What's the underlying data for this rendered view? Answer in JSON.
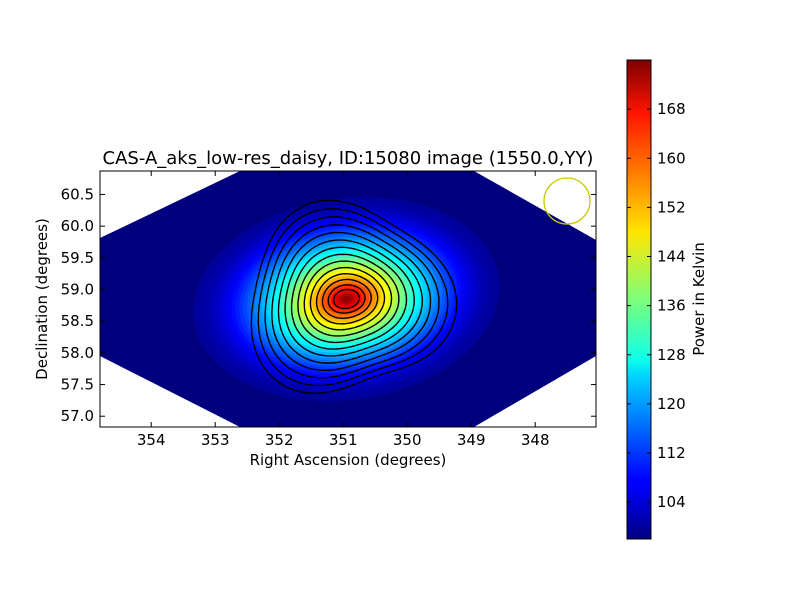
{
  "chart_data": {
    "type": "heatmap",
    "title": "CAS-A_aks_low-res_daisy, ID:15080 image (1550.0,YY)",
    "xlabel": "Right Ascension (degrees)",
    "ylabel": "Declination (degrees)",
    "xlim": [
      354.8,
      347.05
    ],
    "ylim": [
      56.83,
      60.87
    ],
    "x_inverted": true,
    "xticks": [
      354,
      353,
      352,
      351,
      350,
      349,
      348
    ],
    "yticks": [
      57.0,
      57.5,
      58.0,
      58.5,
      59.0,
      59.5,
      60.0,
      60.5
    ],
    "ytick_labels": [
      "57.0",
      "57.5",
      "58.0",
      "58.5",
      "59.0",
      "59.5",
      "60.0",
      "60.5"
    ],
    "colorbar": {
      "label": "Power in Kelvin",
      "range": [
        98,
        176
      ],
      "ticks": [
        104,
        112,
        120,
        128,
        136,
        144,
        152,
        160,
        168
      ],
      "colormap": "jet"
    },
    "peak": {
      "ra": 350.95,
      "dec": 58.85,
      "value": 175
    },
    "background_value": 100,
    "contour_count": 14,
    "beam_marker": {
      "ra": 347.6,
      "dec": 60.37,
      "color": "#c8c800"
    },
    "grid": false
  }
}
